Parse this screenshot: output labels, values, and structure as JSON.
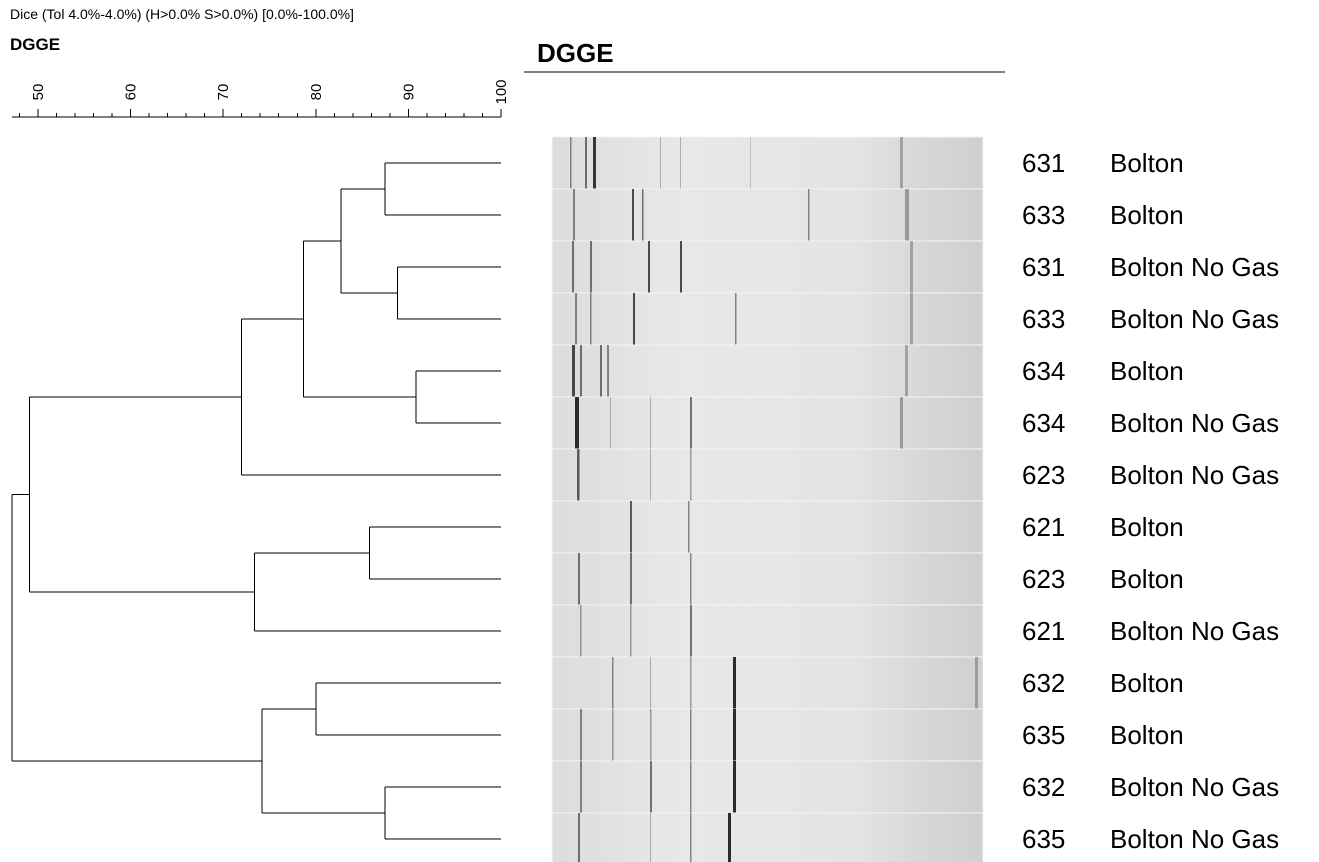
{
  "chart_data": {
    "type": "dendrogram",
    "header": "Dice (Tol 4.0%-4.0%) (H>0.0% S>0.0%) [0.0%-100.0%]",
    "title": "DGGE",
    "gel_title": "DGGE",
    "xlim": [
      47.2,
      100
    ],
    "xticks": [
      50,
      60,
      70,
      80,
      90,
      100
    ],
    "xminorticks": [
      48,
      52,
      54,
      56,
      58,
      62,
      64,
      66,
      68,
      72,
      74,
      76,
      78,
      82,
      84,
      86,
      88,
      92,
      94,
      96,
      98
    ],
    "tree": {
      "similarity": 47.2,
      "children": [
        {
          "similarity": 49.1,
          "children": [
            {
              "similarity": 72.0,
              "children": [
                {
                  "similarity": 78.7,
                  "children": [
                    {
                      "similarity": 82.7,
                      "children": [
                        {
                          "similarity": 87.5,
                          "children": [
                            {
                              "id": "631",
                              "label": "Bolton"
                            },
                            {
                              "id": "633",
                              "label": "Bolton"
                            }
                          ]
                        },
                        {
                          "similarity": 88.8,
                          "children": [
                            {
                              "id": "631",
                              "label": "Bolton No Gas"
                            },
                            {
                              "id": "633",
                              "label": "Bolton No Gas"
                            }
                          ]
                        }
                      ]
                    },
                    {
                      "similarity": 90.8,
                      "children": [
                        {
                          "id": "634",
                          "label": "Bolton"
                        },
                        {
                          "id": "634",
                          "label": "Bolton No Gas"
                        }
                      ]
                    }
                  ]
                },
                {
                  "id": "623",
                  "label": "Bolton No Gas"
                }
              ]
            },
            {
              "similarity": 73.4,
              "children": [
                {
                  "similarity": 85.8,
                  "children": [
                    {
                      "id": "621",
                      "label": "Bolton"
                    },
                    {
                      "id": "623",
                      "label": "Bolton"
                    }
                  ]
                },
                {
                  "id": "621",
                  "label": "Bolton No Gas"
                }
              ]
            }
          ]
        },
        {
          "similarity": 74.2,
          "children": [
            {
              "similarity": 80.0,
              "children": [
                {
                  "id": "632",
                  "label": "Bolton"
                },
                {
                  "id": "635",
                  "label": "Bolton"
                }
              ]
            },
            {
              "similarity": 87.5,
              "children": [
                {
                  "id": "632",
                  "label": "Bolton No Gas"
                },
                {
                  "id": "635",
                  "label": "Bolton No Gas"
                }
              ]
            }
          ]
        }
      ]
    }
  }
}
